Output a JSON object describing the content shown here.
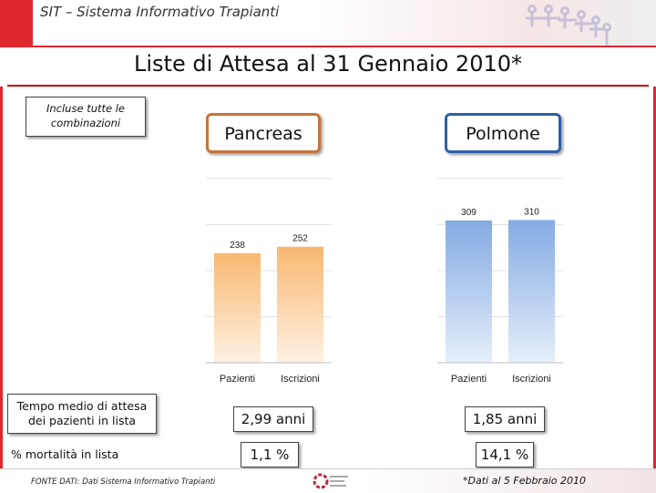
{
  "header": {
    "title": "SIT – Sistema Informativo Trapianti",
    "logo_icon": "people-chain-logo-icon"
  },
  "page_title": "Liste di Attesa al 31 Gennaio 2010*",
  "note": "Incluse tutte le combinazioni",
  "organs": [
    {
      "name": "Pancreas",
      "bar_color": "#f5a042",
      "chart_data": {
        "type": "bar",
        "categories": [
          "Pazienti",
          "Iscrizioni"
        ],
        "values": [
          238,
          252
        ],
        "ylim": [
          0,
          400
        ],
        "grid": true
      },
      "tempo_medio": "2,99 anni",
      "mortalita": "1,1 %"
    },
    {
      "name": "Polmone",
      "bar_color": "#5b8fd9",
      "chart_data": {
        "type": "bar",
        "categories": [
          "Pazienti",
          "Iscrizioni"
        ],
        "values": [
          309,
          310
        ],
        "ylim": [
          0,
          400
        ],
        "grid": true
      },
      "tempo_medio": "1,85 anni",
      "mortalita": "14,1 %"
    }
  ],
  "rows": {
    "tempo_medio_label": "Tempo medio di attesa dei pazienti in lista",
    "mortalita_label": "% mortalità in lista"
  },
  "footer": {
    "source": "FONTE DATI: Dati Sistema Informativo Trapianti",
    "footnote": "*Dati al 5 Febbraio 2010",
    "logo_icon": "centro-nazionale-trapianti-logo-icon"
  }
}
